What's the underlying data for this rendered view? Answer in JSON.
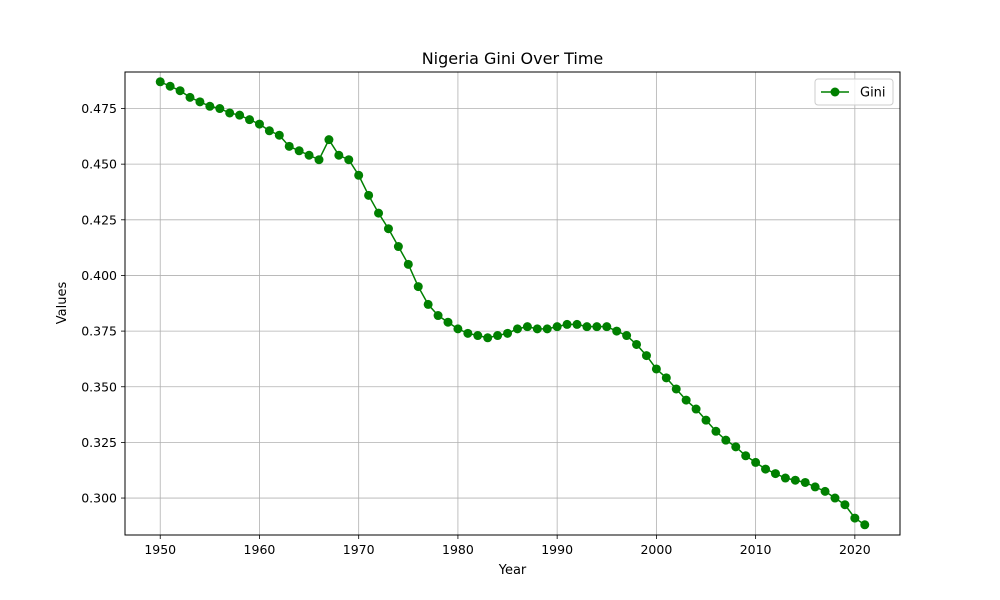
{
  "chart_data": {
    "type": "line",
    "title": "Nigeria Gini Over Time",
    "xlabel": "Year",
    "ylabel": "Values",
    "xlim": [
      1946.45,
      2024.55
    ],
    "ylim": [
      0.2834,
      0.4914
    ],
    "xticks": [
      1950,
      1960,
      1970,
      1980,
      1990,
      2000,
      2010,
      2020
    ],
    "yticks": [
      0.3,
      0.325,
      0.35,
      0.375,
      0.4,
      0.425,
      0.45,
      0.475
    ],
    "ytick_labels": [
      "0.300",
      "0.325",
      "0.350",
      "0.375",
      "0.400",
      "0.425",
      "0.450",
      "0.475"
    ],
    "grid": true,
    "legend_position": "top-right",
    "series": [
      {
        "name": "Gini",
        "color": "#008000",
        "marker": "circle",
        "x": [
          1950,
          1951,
          1952,
          1953,
          1954,
          1955,
          1956,
          1957,
          1958,
          1959,
          1960,
          1961,
          1962,
          1963,
          1964,
          1965,
          1966,
          1967,
          1968,
          1969,
          1970,
          1971,
          1972,
          1973,
          1974,
          1975,
          1976,
          1977,
          1978,
          1979,
          1980,
          1981,
          1982,
          1983,
          1984,
          1985,
          1986,
          1987,
          1988,
          1989,
          1990,
          1991,
          1992,
          1993,
          1994,
          1995,
          1996,
          1997,
          1998,
          1999,
          2000,
          2001,
          2002,
          2003,
          2004,
          2005,
          2006,
          2007,
          2008,
          2009,
          2010,
          2011,
          2012,
          2013,
          2014,
          2015,
          2016,
          2017,
          2018,
          2019,
          2020,
          2021
        ],
        "values": [
          0.487,
          0.485,
          0.483,
          0.48,
          0.478,
          0.476,
          0.475,
          0.473,
          0.472,
          0.47,
          0.468,
          0.465,
          0.463,
          0.458,
          0.456,
          0.454,
          0.452,
          0.461,
          0.454,
          0.452,
          0.445,
          0.436,
          0.428,
          0.421,
          0.413,
          0.405,
          0.395,
          0.387,
          0.382,
          0.379,
          0.376,
          0.374,
          0.373,
          0.372,
          0.373,
          0.374,
          0.376,
          0.377,
          0.376,
          0.376,
          0.377,
          0.378,
          0.378,
          0.377,
          0.377,
          0.377,
          0.375,
          0.373,
          0.369,
          0.364,
          0.358,
          0.354,
          0.349,
          0.344,
          0.34,
          0.335,
          0.33,
          0.326,
          0.323,
          0.319,
          0.316,
          0.313,
          0.311,
          0.309,
          0.308,
          0.307,
          0.305,
          0.303,
          0.3,
          0.297,
          0.291,
          0.288
        ]
      }
    ]
  }
}
